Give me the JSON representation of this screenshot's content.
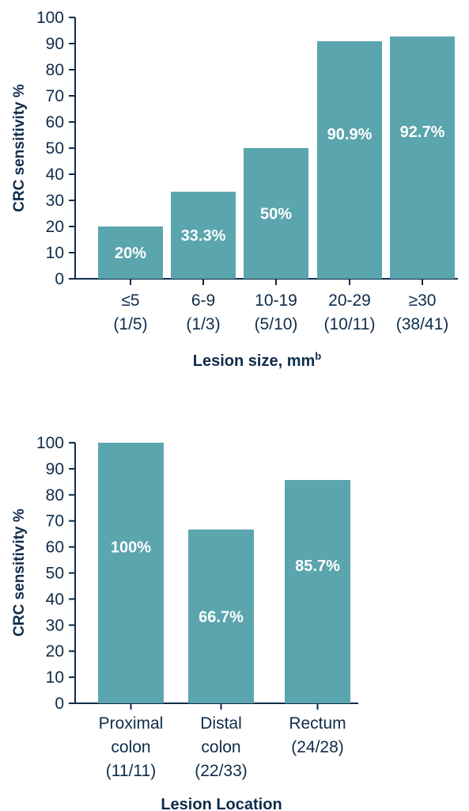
{
  "colors": {
    "bar": "#5aa5ae",
    "axis": "#0f2c4a",
    "label": "#ffffff"
  },
  "chart_data": [
    {
      "type": "bar",
      "ylabel": "CRC sensitivity %",
      "xlabel": "Lesion size, mm",
      "xlabel_superscript": "b",
      "ylim": [
        0,
        100
      ],
      "yticks": [
        0,
        10,
        20,
        30,
        40,
        50,
        60,
        70,
        80,
        90,
        100
      ],
      "categories": [
        [
          "≤5",
          "(1/5)"
        ],
        [
          "6-9",
          "(1/3)"
        ],
        [
          "10-19",
          "(5/10)"
        ],
        [
          "20-29",
          "(10/11)"
        ],
        [
          "≥30",
          "(38/41)"
        ]
      ],
      "values": [
        20,
        33.3,
        50,
        90.9,
        92.7
      ],
      "data_labels": [
        "20%",
        "33.3%",
        "50%",
        "90.9%",
        "92.7%"
      ]
    },
    {
      "type": "bar",
      "ylabel": "CRC sensitivity %",
      "xlabel": "Lesion Location",
      "xlabel_superscript": "",
      "ylim": [
        0,
        100
      ],
      "yticks": [
        0,
        10,
        20,
        30,
        40,
        50,
        60,
        70,
        80,
        90,
        100
      ],
      "categories": [
        [
          "Proximal",
          "colon",
          "(11/11)"
        ],
        [
          "Distal",
          "colon",
          "(22/33)"
        ],
        [
          "Rectum",
          "(24/28)"
        ]
      ],
      "values": [
        100,
        66.7,
        85.7
      ],
      "data_labels": [
        "100%",
        "66.7%",
        "85.7%"
      ]
    }
  ]
}
